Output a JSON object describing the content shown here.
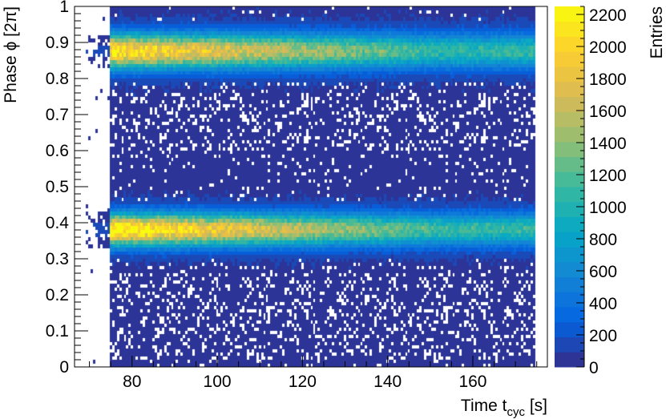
{
  "chart_data": {
    "type": "heatmap",
    "title": "",
    "xlabel": "Time t",
    "xlabel_sub": "cyc",
    "xlabel_unit": " [s]",
    "ylabel": "Phase ϕ [2π]",
    "zlabel": "Entries",
    "xlim": [
      66.5,
      177.5
    ],
    "ylim": [
      0,
      1
    ],
    "zlim": [
      0,
      2250
    ],
    "x_ticks": [
      80,
      100,
      120,
      140,
      160
    ],
    "y_ticks": [
      0,
      0.1,
      0.2,
      0.3,
      0.4,
      0.5,
      0.6,
      0.7,
      0.8,
      0.9,
      1
    ],
    "y_tick_labels": [
      "0",
      "0.1",
      "0.2",
      "0.3",
      "0.4",
      "0.5",
      "0.6",
      "0.7",
      "0.8",
      "0.9",
      "1"
    ],
    "z_ticks": [
      0,
      200,
      400,
      600,
      800,
      1000,
      1200,
      1400,
      1600,
      1800,
      2000,
      2200
    ],
    "colormap": [
      "#352a87",
      "#0363e1",
      "#1485d4",
      "#06a7c6",
      "#38b99e",
      "#92bf73",
      "#d9ba56",
      "#fcce2e",
      "#f9fb0e"
    ],
    "data_region_x": [
      75,
      175
    ],
    "bands": [
      {
        "center": 0.875,
        "width": 0.07,
        "peak_entries": 2050,
        "late_entries": 1000
      },
      {
        "center": 0.38,
        "width": 0.065,
        "peak_entries": 2200,
        "late_entries": 1050
      }
    ],
    "background_entries": 100,
    "grid": false,
    "legend": "colorbar-right"
  }
}
